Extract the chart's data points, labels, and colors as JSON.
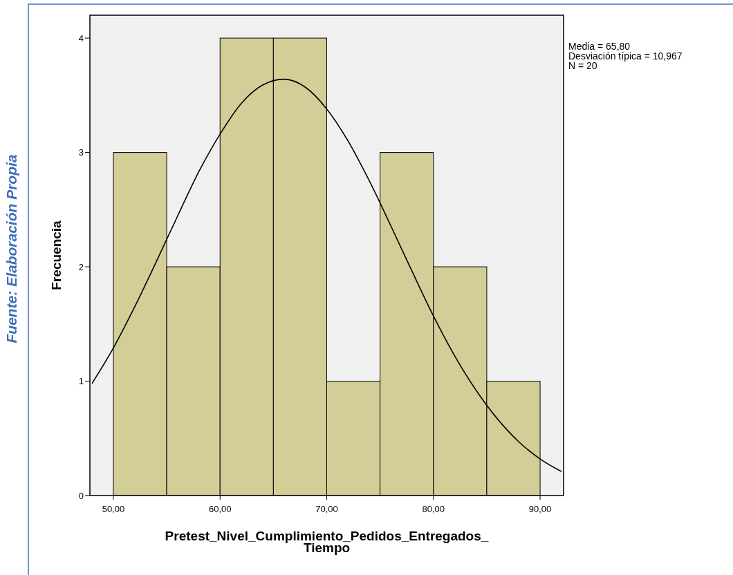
{
  "chart_data": {
    "type": "histogram",
    "xlabel": "Pretest_Nivel_Cumplimiento_Pedidos_Entregados_Tiempo",
    "ylabel": "Frecuencia",
    "bins": [
      50,
      55,
      60,
      65,
      70,
      75,
      80,
      85,
      90
    ],
    "series": [
      {
        "color": "#d3ce97",
        "values": [
          3,
          2,
          4,
          4,
          1,
          3,
          2,
          1
        ]
      },
      {
        "type": "line",
        "color": "#000000",
        "x": [
          48,
          50,
          52,
          54,
          56,
          58,
          60,
          62,
          64,
          66,
          68,
          70,
          72,
          74,
          76,
          78,
          80,
          82,
          84,
          86,
          88,
          90,
          92
        ],
        "values": [
          0.98,
          1.29,
          1.65,
          2.04,
          2.44,
          2.83,
          3.16,
          3.43,
          3.59,
          3.64,
          3.57,
          3.38,
          3.1,
          2.75,
          2.36,
          1.96,
          1.57,
          1.22,
          0.92,
          0.67,
          0.47,
          0.32,
          0.21
        ]
      }
    ],
    "xlim": [
      47.8,
      92.2
    ],
    "ylim": [
      0,
      4.2
    ],
    "xticks": [
      {
        "value": 50,
        "label": "50,00"
      },
      {
        "value": 60,
        "label": "60,00"
      },
      {
        "value": 70,
        "label": "70,00"
      },
      {
        "value": 80,
        "label": "80,00"
      },
      {
        "value": 90,
        "label": "90,00"
      }
    ],
    "yticks": [
      0,
      1,
      2,
      3,
      4
    ],
    "grid": false,
    "marker": "none",
    "line_style": "solid",
    "annotations": [
      "Media = 65,80",
      "Desviación típica = 10,967",
      "N = 20",
      "Fuente: Elaboración Propia"
    ]
  }
}
